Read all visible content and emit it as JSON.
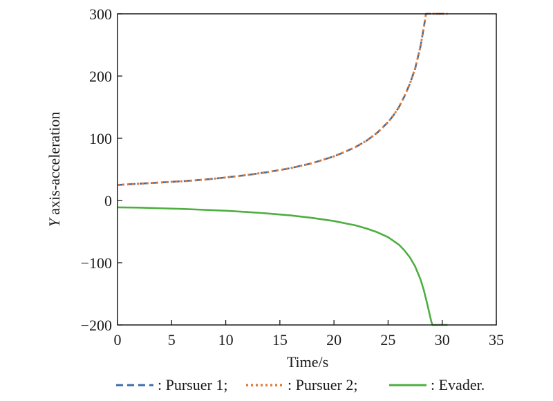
{
  "chart_data": {
    "type": "line",
    "xlabel": "Time/s",
    "ylabel_italic": "Y",
    "ylabel_rest": " axis-acceleration",
    "xlim": [
      0,
      35
    ],
    "ylim": [
      -200,
      300
    ],
    "xticks": [
      0,
      5,
      10,
      15,
      20,
      25,
      30,
      35
    ],
    "yticks": [
      -200,
      -100,
      0,
      100,
      200,
      300
    ],
    "xtick_labels": [
      "0",
      "5",
      "10",
      "15",
      "20",
      "25",
      "30",
      "35"
    ],
    "ytick_labels": [
      "−200",
      "−100",
      "0",
      "100",
      "200",
      "300"
    ],
    "grid": false,
    "legend_position": "bottom",
    "series": [
      {
        "name": ": Pursuer 1;",
        "color": "#3b6ea8",
        "style": "dashed",
        "x": [
          0,
          2,
          4,
          6,
          8,
          10,
          12,
          14,
          16,
          18,
          20,
          21,
          22,
          23,
          24,
          25,
          25.5,
          26,
          26.5,
          27,
          27.5,
          28,
          28.3,
          28.5,
          30.5
        ],
        "y": [
          25,
          27,
          29,
          31,
          33.5,
          37,
          41,
          46,
          52,
          60,
          71,
          78,
          86,
          96,
          109,
          126,
          137,
          150,
          167,
          187,
          212,
          248,
          278,
          300,
          300
        ]
      },
      {
        "name": ": Pursuer 2;",
        "color": "#e07b39",
        "style": "dotted",
        "x": [
          0,
          2,
          4,
          6,
          8,
          10,
          12,
          14,
          16,
          18,
          20,
          21,
          22,
          23,
          24,
          25,
          25.5,
          26,
          26.5,
          27,
          27.5,
          28,
          28.3,
          28.5,
          30.5
        ],
        "y": [
          25,
          27,
          29,
          31,
          33.5,
          37,
          41,
          46,
          52,
          60,
          71,
          78,
          86,
          96,
          109,
          126,
          137,
          150,
          167,
          187,
          212,
          248,
          278,
          300,
          300
        ]
      },
      {
        "name": ": Evader.",
        "color": "#4caf3f",
        "style": "solid",
        "x": [
          0,
          2,
          4,
          6,
          8,
          10,
          12,
          14,
          16,
          18,
          20,
          22,
          23,
          24,
          25,
          26,
          26.5,
          27,
          27.5,
          28,
          28.3,
          28.6,
          28.8,
          29.0,
          29.1,
          30.5
        ],
        "y": [
          -11,
          -11.5,
          -12.5,
          -13.5,
          -15,
          -16.5,
          -18.5,
          -21,
          -24,
          -28,
          -33,
          -40,
          -45,
          -51,
          -59,
          -71,
          -80,
          -91,
          -106,
          -127,
          -144,
          -165,
          -180,
          -195,
          -200,
          -200
        ]
      }
    ]
  }
}
